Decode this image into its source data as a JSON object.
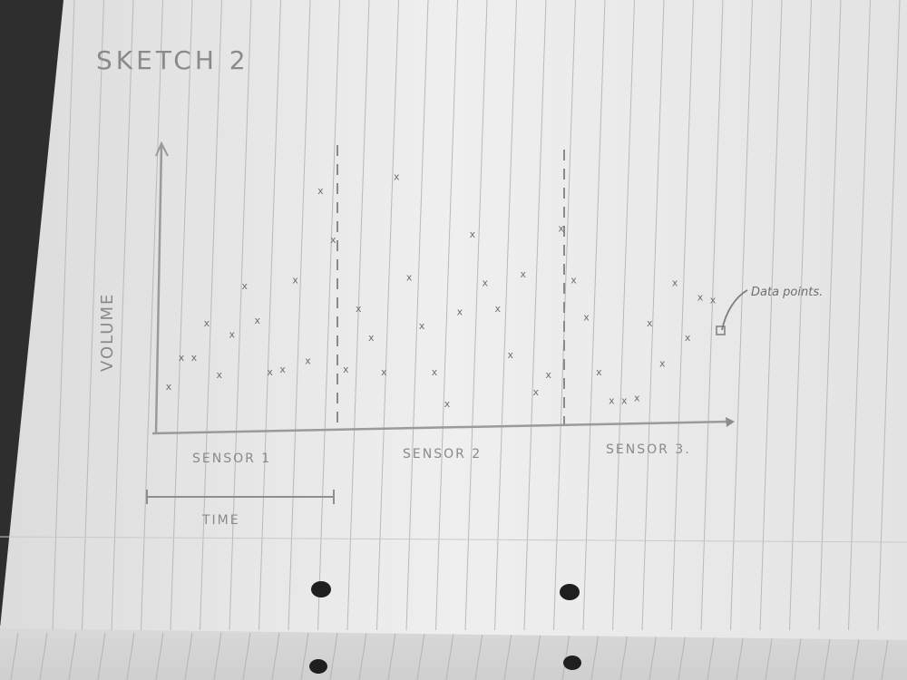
{
  "chart_data": {
    "type": "scatter",
    "title": "SKETCH 2",
    "ylabel": "VOLUME",
    "xlabel": "TIME",
    "groups": [
      "SENSOR 1",
      "SENSOR 2",
      "SENSOR 3."
    ],
    "annotation": "Data points.",
    "marker": "x",
    "grid": false,
    "series": [
      {
        "points": [
          {
            "x": 1,
            "y": 16
          },
          {
            "x": 2,
            "y": 26
          },
          {
            "x": 3,
            "y": 26
          },
          {
            "x": 4,
            "y": 38
          },
          {
            "x": 5,
            "y": 20
          },
          {
            "x": 6,
            "y": 34
          },
          {
            "x": 7,
            "y": 51
          },
          {
            "x": 8,
            "y": 39
          },
          {
            "x": 9,
            "y": 21
          },
          {
            "x": 10,
            "y": 22
          },
          {
            "x": 11,
            "y": 53
          },
          {
            "x": 12,
            "y": 25
          },
          {
            "x": 13,
            "y": 84
          }
        ]
      },
      {
        "points": [
          {
            "x": 14,
            "y": 67
          },
          {
            "x": 15,
            "y": 22
          },
          {
            "x": 16,
            "y": 43
          },
          {
            "x": 17,
            "y": 33
          },
          {
            "x": 18,
            "y": 21
          },
          {
            "x": 19,
            "y": 89
          },
          {
            "x": 20,
            "y": 54
          },
          {
            "x": 21,
            "y": 37
          },
          {
            "x": 22,
            "y": 21
          },
          {
            "x": 23,
            "y": 10
          },
          {
            "x": 24,
            "y": 42
          },
          {
            "x": 25,
            "y": 69
          },
          {
            "x": 26,
            "y": 52
          },
          {
            "x": 27,
            "y": 43
          },
          {
            "x": 28,
            "y": 27
          },
          {
            "x": 29,
            "y": 55
          }
        ]
      },
      {
        "points": [
          {
            "x": 30,
            "y": 14
          },
          {
            "x": 31,
            "y": 20
          },
          {
            "x": 32,
            "y": 71
          },
          {
            "x": 33,
            "y": 53
          },
          {
            "x": 34,
            "y": 40
          },
          {
            "x": 35,
            "y": 21
          },
          {
            "x": 36,
            "y": 11
          },
          {
            "x": 37,
            "y": 11
          },
          {
            "x": 38,
            "y": 12
          },
          {
            "x": 39,
            "y": 38
          },
          {
            "x": 40,
            "y": 24
          },
          {
            "x": 41,
            "y": 52
          },
          {
            "x": 42,
            "y": 33
          },
          {
            "x": 43,
            "y": 47
          },
          {
            "x": 44,
            "y": 46
          }
        ]
      }
    ]
  }
}
